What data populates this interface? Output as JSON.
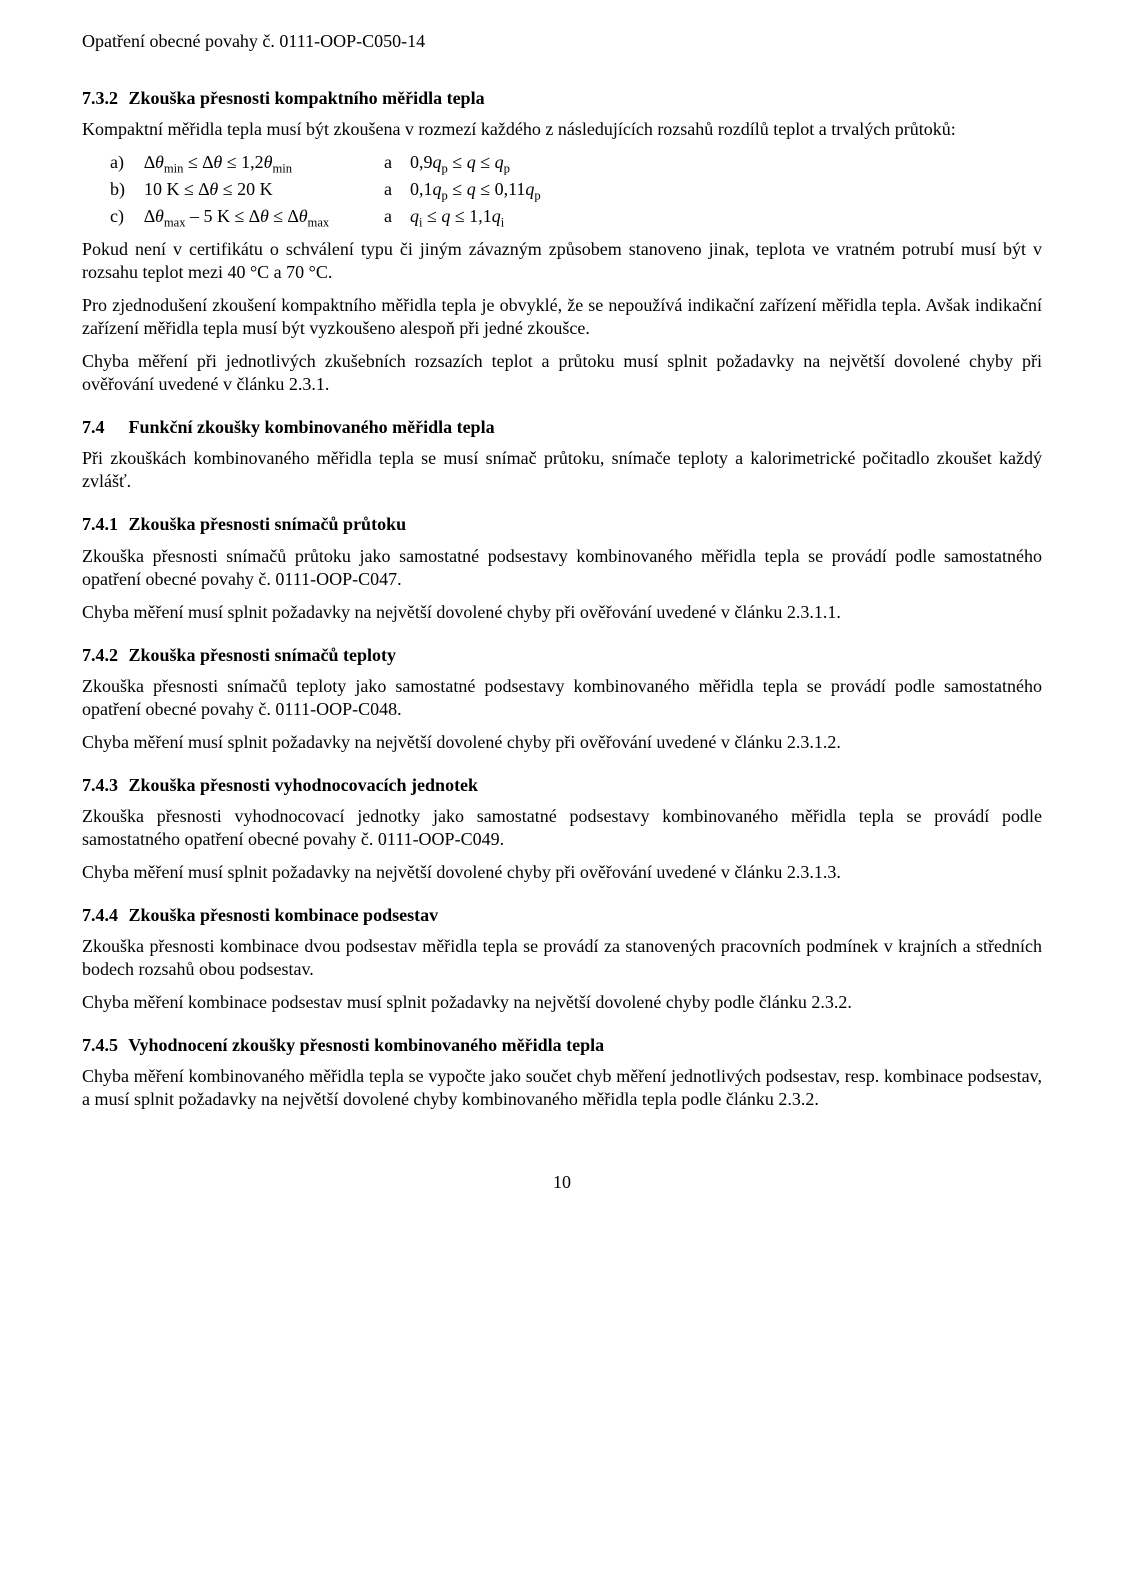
{
  "header": {
    "doc_title": "Opatření obecné povahy č. 0111-OOP-C050-14"
  },
  "sections": {
    "s732": {
      "num": "7.3.2",
      "title": "Zkouška přesnosti kompaktního měřidla tepla",
      "p1": "Kompaktní měřidla tepla musí být zkoušena v rozmezí každého z následujících rozsahů rozdílů teplot a trvalých průtoků:",
      "cond": {
        "a_label": "a)",
        "a_left_html": "∆<span class='ital'>θ</span><sub>min</sub> ≤ ∆<span class='ital'>θ</span>  ≤ 1,2<span class='ital'>θ</span><sub>min</sub>",
        "a_a": "a",
        "a_right_html": "0,9<span class='ital'>q</span><sub>p</sub> ≤ <span class='ital'>q</span> ≤ <span class='ital'>q</span><sub>p</sub>",
        "b_label": "b)",
        "b_left_html": "10 K ≤ ∆<span class='ital'>θ</span>  ≤ 20 K",
        "b_a": "a",
        "b_right_html": "0,1<span class='ital'>q</span><sub>p</sub> ≤ <span class='ital'>q</span> ≤ 0,11<span class='ital'>q</span><sub>p</sub>",
        "c_label": "c)",
        "c_left_html": "∆<span class='ital'>θ</span><sub>max</sub> – 5 K ≤ ∆<span class='ital'>θ</span>  ≤ ∆<span class='ital'>θ</span><sub>max</sub>",
        "c_a": "a",
        "c_right_html": "<span class='ital'>q</span><sub>i</sub> ≤ <span class='ital'>q</span> ≤ 1,1<span class='ital'>q</span><sub>i</sub>"
      },
      "p2": "Pokud není v certifikátu o schválení typu či jiným závazným způsobem stanoveno jinak, teplota ve vratném potrubí musí být v rozsahu teplot mezi 40 °C a 70 °C.",
      "p3": "Pro zjednodušení zkoušení kompaktního měřidla tepla je obvyklé, že se nepoužívá indikační zařízení měřidla tepla. Avšak indikační zařízení měřidla tepla musí být vyzkoušeno alespoň při jedné zkoušce.",
      "p4": "Chyba měření při jednotlivých zkušebních rozsazích teplot a průtoku musí splnit požadavky na největší dovolené chyby při ověřování uvedené v článku 2.3.1."
    },
    "s74": {
      "num": "7.4",
      "title": "Funkční zkoušky kombinovaného měřidla tepla",
      "p1": "Při zkouškách kombinovaného měřidla tepla se musí snímač průtoku, snímače teploty a kalorimetrické počitadlo zkoušet každý zvlášť."
    },
    "s741": {
      "num": "7.4.1",
      "title": "Zkouška přesnosti snímačů průtoku",
      "p1": "Zkouška přesnosti snímačů průtoku jako samostatné podsestavy kombinovaného měřidla tepla se provádí podle samostatného opatření obecné povahy č. 0111-OOP-C047.",
      "p2": "Chyba měření musí splnit požadavky na největší dovolené chyby při ověřování uvedené v článku 2.3.1.1."
    },
    "s742": {
      "num": "7.4.2",
      "title": "Zkouška přesnosti snímačů teploty",
      "p1": "Zkouška přesnosti snímačů teploty jako samostatné podsestavy kombinovaného měřidla tepla se provádí podle samostatného opatření obecné povahy č. 0111-OOP-C048.",
      "p2": "Chyba měření musí splnit požadavky na největší dovolené chyby při ověřování uvedené v článku 2.3.1.2."
    },
    "s743": {
      "num": "7.4.3",
      "title": "Zkouška přesnosti vyhodnocovacích jednotek",
      "p1": "Zkouška přesnosti vyhodnocovací jednotky jako samostatné podsestavy kombinovaného měřidla tepla se provádí podle samostatného opatření obecné povahy č. 0111-OOP-C049.",
      "p2": "Chyba měření musí splnit požadavky na největší dovolené chyby při ověřování uvedené v článku 2.3.1.3."
    },
    "s744": {
      "num": "7.4.4",
      "title": "Zkouška přesnosti kombinace podsestav",
      "p1": "Zkouška přesnosti kombinace dvou podsestav měřidla tepla se provádí za stanovených pracovních podmínek v krajních a středních bodech rozsahů obou podsestav.",
      "p2": "Chyba měření kombinace podsestav musí splnit požadavky na největší dovolené chyby podle článku 2.3.2."
    },
    "s745": {
      "num": "7.4.5",
      "title": "Vyhodnocení zkoušky přesnosti kombinovaného měřidla tepla",
      "p1": "Chyba měření kombinovaného měřidla tepla se vypočte jako součet chyb měření jednotlivých podsestav, resp. kombinace podsestav, a musí splnit požadavky na největší dovolené chyby kombinovaného měřidla tepla podle článku 2.3.2."
    }
  },
  "footer": {
    "page_number": "10"
  }
}
